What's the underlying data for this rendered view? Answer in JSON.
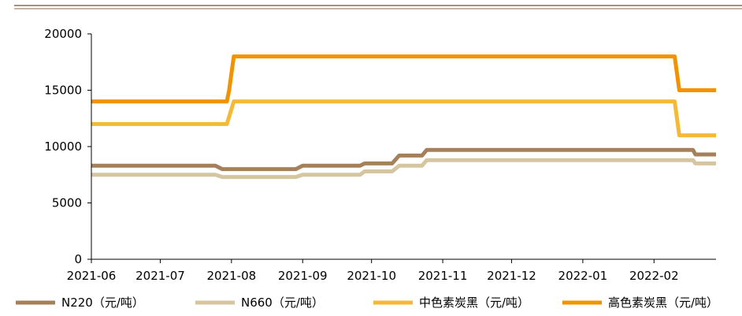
{
  "chart_data": {
    "type": "line",
    "ylim": [
      0,
      20000
    ],
    "yticks": [
      0,
      5000,
      10000,
      15000,
      20000
    ],
    "xlim": [
      "2021-06-01",
      "2022-02-28"
    ],
    "xtick_labels": [
      "2021-06",
      "2021-07",
      "2021-08",
      "2021-09",
      "2021-10",
      "2021-11",
      "2021-12",
      "2022-01",
      "2022-02"
    ],
    "legend_position": "bottom",
    "series": [
      {
        "name": "N220（元/吨）",
        "color": "#A5805A",
        "points": [
          [
            "2021-06-01",
            8300
          ],
          [
            "2021-07-25",
            8300
          ],
          [
            "2021-07-28",
            8000
          ],
          [
            "2021-08-29",
            8000
          ],
          [
            "2021-09-01",
            8300
          ],
          [
            "2021-09-26",
            8300
          ],
          [
            "2021-09-28",
            8500
          ],
          [
            "2021-10-10",
            8500
          ],
          [
            "2021-10-13",
            9200
          ],
          [
            "2021-10-23",
            9200
          ],
          [
            "2021-10-25",
            9700
          ],
          [
            "2022-02-18",
            9700
          ],
          [
            "2022-02-19",
            9300
          ],
          [
            "2022-02-28",
            9300
          ]
        ]
      },
      {
        "name": "N660（元/吨）",
        "color": "#D6C6A0",
        "points": [
          [
            "2021-06-01",
            7500
          ],
          [
            "2021-07-25",
            7500
          ],
          [
            "2021-07-28",
            7300
          ],
          [
            "2021-08-29",
            7300
          ],
          [
            "2021-09-01",
            7500
          ],
          [
            "2021-09-26",
            7500
          ],
          [
            "2021-09-28",
            7800
          ],
          [
            "2021-10-10",
            7800
          ],
          [
            "2021-10-13",
            8300
          ],
          [
            "2021-10-23",
            8300
          ],
          [
            "2021-10-25",
            8800
          ],
          [
            "2022-02-18",
            8800
          ],
          [
            "2022-02-19",
            8500
          ],
          [
            "2022-02-28",
            8500
          ]
        ]
      },
      {
        "name": "中色素炭黑（元/吨）",
        "color": "#F5B935",
        "points": [
          [
            "2021-06-01",
            12000
          ],
          [
            "2021-07-30",
            12000
          ],
          [
            "2021-08-02",
            14000
          ],
          [
            "2022-02-10",
            14000
          ],
          [
            "2022-02-12",
            11000
          ],
          [
            "2022-02-28",
            11000
          ]
        ]
      },
      {
        "name": "高色素炭黑（元/吨）",
        "color": "#F29200",
        "points": [
          [
            "2021-06-01",
            14000
          ],
          [
            "2021-07-30",
            14000
          ],
          [
            "2021-07-31",
            15000
          ],
          [
            "2021-08-02",
            18000
          ],
          [
            "2022-02-10",
            18000
          ],
          [
            "2022-02-12",
            15000
          ],
          [
            "2022-02-28",
            15000
          ]
        ]
      }
    ]
  }
}
